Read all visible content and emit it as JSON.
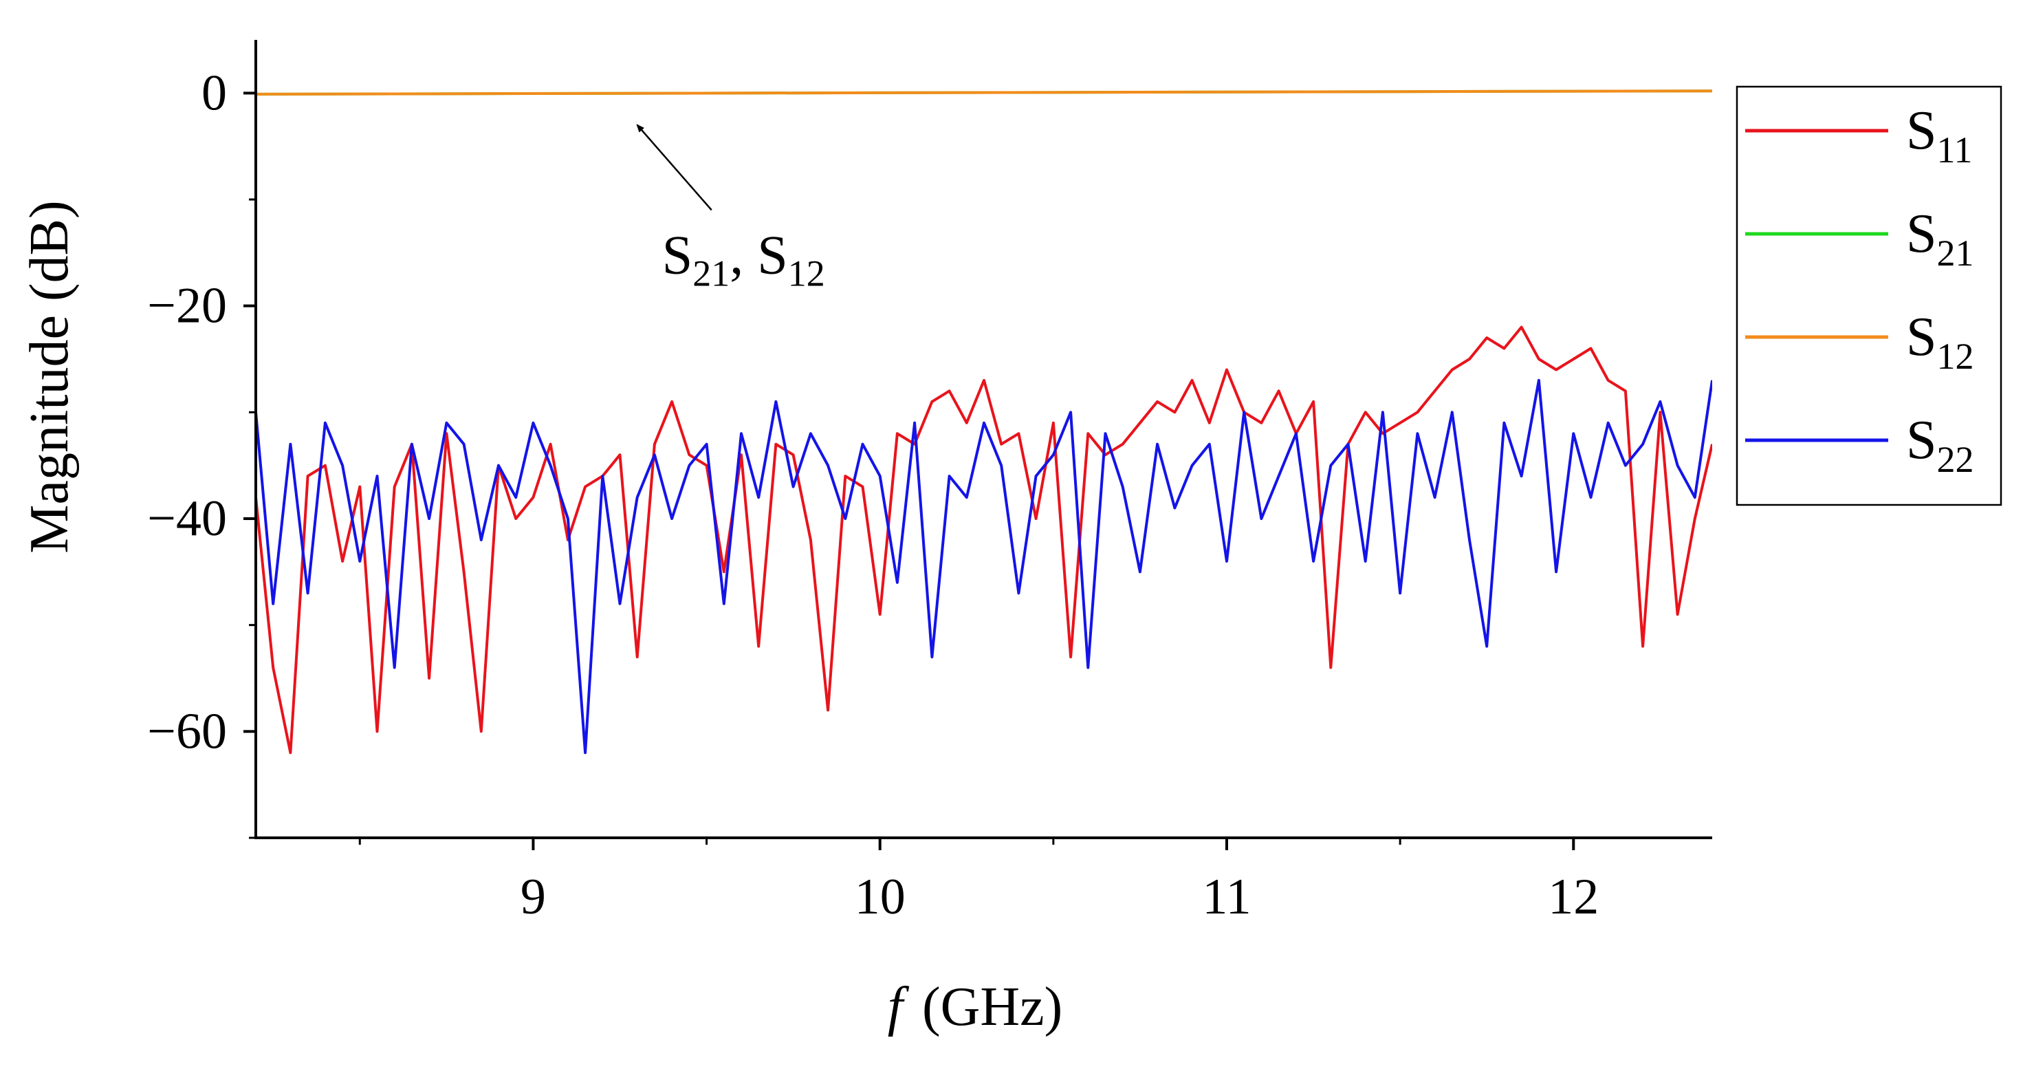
{
  "chart_data": {
    "type": "line",
    "title": "",
    "xlabel_italic": "f",
    "xlabel_unit": "(GHz)",
    "ylabel": "Magnitude (dB)",
    "xlim": [
      8.2,
      12.4
    ],
    "ylim": [
      -70,
      5
    ],
    "xticks": [
      9,
      10,
      11,
      12
    ],
    "xtick_labels": [
      "9",
      "10",
      "11",
      "12"
    ],
    "xminor_ticks": [
      8.5,
      9.5,
      10.5,
      11.5
    ],
    "yticks": [
      0,
      -20,
      -40,
      -60
    ],
    "ytick_labels": [
      "0",
      "−20",
      "−40",
      "−60"
    ],
    "yminor_ticks": [
      -10,
      -30,
      -50,
      -70
    ],
    "grid": false,
    "legend_position": "right",
    "annotation": {
      "main1": "S",
      "sub1": "21",
      "sep": ", ",
      "main2": "S",
      "sub2": "12",
      "points_to": [
        9.3,
        -3.0
      ],
      "text_at": [
        9.55,
        -15.0
      ]
    },
    "series": [
      {
        "name": "S11",
        "label_main": "S",
        "label_sub": "11",
        "color": "#e8141c",
        "x": [
          8.2,
          8.25,
          8.3,
          8.35,
          8.4,
          8.45,
          8.5,
          8.55,
          8.6,
          8.65,
          8.7,
          8.75,
          8.8,
          8.85,
          8.9,
          8.95,
          9.0,
          9.05,
          9.1,
          9.15,
          9.2,
          9.25,
          9.3,
          9.35,
          9.4,
          9.45,
          9.5,
          9.55,
          9.6,
          9.65,
          9.7,
          9.75,
          9.8,
          9.85,
          9.9,
          9.95,
          10.0,
          10.05,
          10.1,
          10.15,
          10.2,
          10.25,
          10.3,
          10.35,
          10.4,
          10.45,
          10.5,
          10.55,
          10.6,
          10.65,
          10.7,
          10.75,
          10.8,
          10.85,
          10.9,
          10.95,
          11.0,
          11.05,
          11.1,
          11.15,
          11.2,
          11.25,
          11.3,
          11.35,
          11.4,
          11.45,
          11.5,
          11.55,
          11.6,
          11.65,
          11.7,
          11.75,
          11.8,
          11.85,
          11.9,
          11.95,
          12.0,
          12.05,
          12.1,
          12.15,
          12.2,
          12.25,
          12.3,
          12.35,
          12.4
        ],
        "values": [
          -38,
          -54,
          -62,
          -36,
          -35,
          -44,
          -37,
          -60,
          -37,
          -33,
          -55,
          -32,
          -45,
          -60,
          -35,
          -40,
          -38,
          -33,
          -42,
          -37,
          -36,
          -34,
          -53,
          -33,
          -29,
          -34,
          -35,
          -45,
          -34,
          -52,
          -33,
          -34,
          -42,
          -58,
          -36,
          -37,
          -49,
          -32,
          -33,
          -29,
          -28,
          -31,
          -27,
          -33,
          -32,
          -40,
          -31,
          -53,
          -32,
          -34,
          -33,
          -31,
          -29,
          -30,
          -27,
          -31,
          -26,
          -30,
          -31,
          -28,
          -32,
          -29,
          -54,
          -33,
          -30,
          -32,
          -31,
          -30,
          -28,
          -26,
          -25,
          -23,
          -24,
          -22,
          -25,
          -26,
          -25,
          -24,
          -27,
          -28,
          -52,
          -30,
          -49,
          -40,
          -33
        ]
      },
      {
        "name": "S21",
        "label_main": "S",
        "label_sub": "21",
        "color": "#1ed81e",
        "x": [
          8.2,
          12.4
        ],
        "values": [
          -0.1,
          0.2
        ]
      },
      {
        "name": "S12",
        "label_main": "S",
        "label_sub": "12",
        "color": "#f28c1c",
        "x": [
          8.2,
          12.4
        ],
        "values": [
          -0.1,
          0.2
        ]
      },
      {
        "name": "S22",
        "label_main": "S",
        "label_sub": "22",
        "color": "#1414e8",
        "x": [
          8.2,
          8.25,
          8.3,
          8.35,
          8.4,
          8.45,
          8.5,
          8.55,
          8.6,
          8.65,
          8.7,
          8.75,
          8.8,
          8.85,
          8.9,
          8.95,
          9.0,
          9.05,
          9.1,
          9.15,
          9.2,
          9.25,
          9.3,
          9.35,
          9.4,
          9.45,
          9.5,
          9.55,
          9.6,
          9.65,
          9.7,
          9.75,
          9.8,
          9.85,
          9.9,
          9.95,
          10.0,
          10.05,
          10.1,
          10.15,
          10.2,
          10.25,
          10.3,
          10.35,
          10.4,
          10.45,
          10.5,
          10.55,
          10.6,
          10.65,
          10.7,
          10.75,
          10.8,
          10.85,
          10.9,
          10.95,
          11.0,
          11.05,
          11.1,
          11.15,
          11.2,
          11.25,
          11.3,
          11.35,
          11.4,
          11.45,
          11.5,
          11.55,
          11.6,
          11.65,
          11.7,
          11.75,
          11.8,
          11.85,
          11.9,
          11.95,
          12.0,
          12.05,
          12.1,
          12.15,
          12.2,
          12.25,
          12.3,
          12.35,
          12.4
        ],
        "values": [
          -30,
          -48,
          -33,
          -47,
          -31,
          -35,
          -44,
          -36,
          -54,
          -33,
          -40,
          -31,
          -33,
          -42,
          -35,
          -38,
          -31,
          -35,
          -40,
          -62,
          -36,
          -48,
          -38,
          -34,
          -40,
          -35,
          -33,
          -48,
          -32,
          -38,
          -29,
          -37,
          -32,
          -35,
          -40,
          -33,
          -36,
          -46,
          -31,
          -53,
          -36,
          -38,
          -31,
          -35,
          -47,
          -36,
          -34,
          -30,
          -54,
          -32,
          -37,
          -45,
          -33,
          -39,
          -35,
          -33,
          -44,
          -30,
          -40,
          -36,
          -32,
          -44,
          -35,
          -33,
          -44,
          -30,
          -47,
          -32,
          -38,
          -30,
          -42,
          -52,
          -31,
          -36,
          -27,
          -45,
          -32,
          -38,
          -31,
          -35,
          -33,
          -29,
          -35,
          -38,
          -27
        ]
      }
    ]
  }
}
